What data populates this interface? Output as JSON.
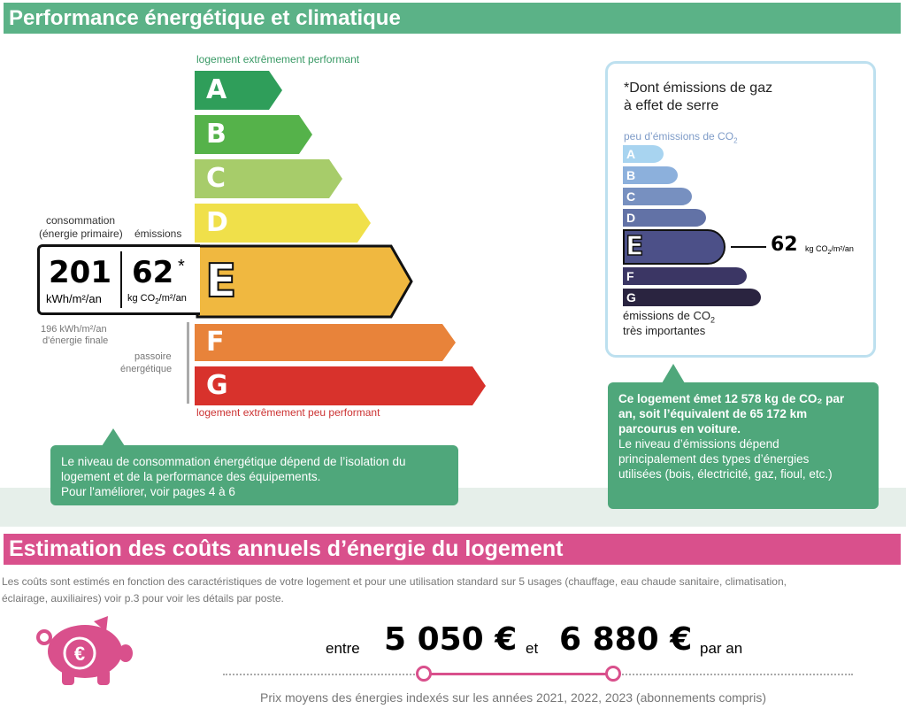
{
  "section1": {
    "title": "Performance énergétique et climatique",
    "top_label": "logement extrêmement performant",
    "bottom_label": "logement extrêmement peu performant",
    "classes": [
      {
        "letter": "A",
        "color": "#2f9e5a"
      },
      {
        "letter": "B",
        "color": "#55b24a"
      },
      {
        "letter": "C",
        "color": "#a7cc6a"
      },
      {
        "letter": "D",
        "color": "#f0e04a"
      },
      {
        "letter": "E",
        "color": "#f0b840"
      },
      {
        "letter": "F",
        "color": "#e8833a"
      },
      {
        "letter": "G",
        "color": "#d8322c"
      }
    ],
    "current_class": "E",
    "consumption_label_1": "consommation",
    "consumption_label_2": "(énergie primaire)",
    "emissions_label": "émissions",
    "consumption_value": "201",
    "consumption_unit": "kWh/m²/an",
    "emissions_value": "62",
    "emissions_star": "*",
    "emissions_unit_prefix": "kg CO",
    "emissions_unit_sub": "2",
    "emissions_unit_suffix": "/m²/an",
    "final_energy_1": "196 kWh/m²/an",
    "final_energy_2": "d'énergie finale",
    "passoire_1": "passoire",
    "passoire_2": "énergétique",
    "info_box": {
      "line1": "Le niveau de consommation énergétique dépend de l’isolation du",
      "line2": "logement et de la performance des équipements.",
      "line3": "Pour l'améliorer, voir pages 4 à 6"
    }
  },
  "ges": {
    "title_1": "*Dont émissions de gaz",
    "title_2": "à effet de serre",
    "top_label_prefix": "peu d’émissions de CO",
    "top_label_sub": "2",
    "classes": [
      {
        "letter": "A",
        "color": "#a8d4f0"
      },
      {
        "letter": "B",
        "color": "#8cb0dc"
      },
      {
        "letter": "C",
        "color": "#7790c0"
      },
      {
        "letter": "D",
        "color": "#6272a6"
      },
      {
        "letter": "E",
        "color": "#4c5088"
      },
      {
        "letter": "F",
        "color": "#3b3664"
      },
      {
        "letter": "G",
        "color": "#2a2440"
      }
    ],
    "current_class": "E",
    "value": "62",
    "unit_prefix": "kg CO",
    "unit_sub": "2",
    "unit_suffix": "/m²/an",
    "bottom_label_1_prefix": "émissions de CO",
    "bottom_label_1_sub": "2",
    "bottom_label_2": "très importantes",
    "info_box": {
      "bold1": "Ce logement émet 12 578 kg de CO₂ par",
      "bold2": "an, soit l’équivalent de 65 172 km",
      "bold3": "parcourus en voiture.",
      "line4": "Le niveau d’émissions dépend",
      "line5": "principalement des types d’énergies",
      "line6": "utilisées (bois, électricité, gaz, fioul, etc.)"
    }
  },
  "section2": {
    "title": "Estimation des coûts annuels d’énergie du logement",
    "desc_1": "Les coûts sont estimés en fonction des caractéristiques de votre logement et pour une utilisation standard sur 5 usages (chauffage, eau chaude sanitaire, climatisation,",
    "desc_2": "éclairage, auxiliaires) voir p.3 pour voir les détails par poste.",
    "word_between": "entre",
    "low_value": "5 050 €",
    "word_and": "et",
    "high_value": "6 880 €",
    "per_year": "par an",
    "prices_note": "Prix moyens des énergies indexés sur les années 2021, 2022, 2023 (abonnements compris)",
    "accent_color": "#d9508c"
  }
}
